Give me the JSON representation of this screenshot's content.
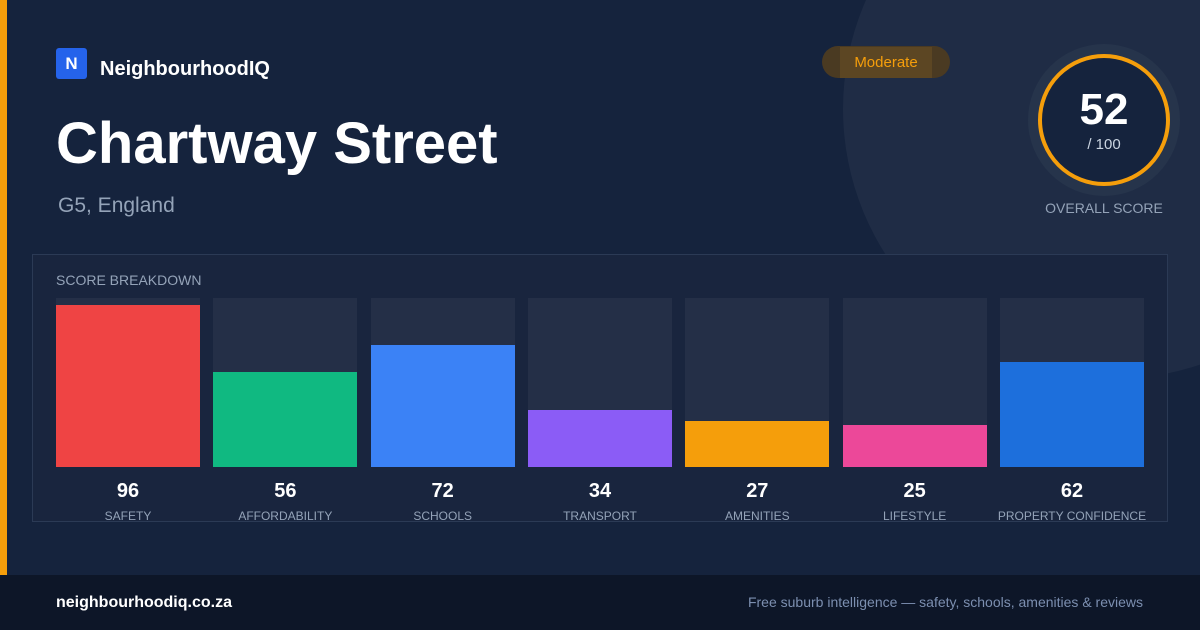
{
  "brand": {
    "logo_letter": "N",
    "name": "NeighbourhoodIQ"
  },
  "rating_badge": "Moderate",
  "title": "Chartway Street",
  "subtitle": "G5, England",
  "overall": {
    "score": "52",
    "max_label": "/ 100",
    "label": "OVERALL SCORE"
  },
  "breakdown_title": "SCORE BREAKDOWN",
  "colors": {
    "accent": "#f59e0b",
    "background": "#15233d",
    "brand_blue": "#2563eb"
  },
  "chart_data": {
    "type": "bar",
    "title": "SCORE BREAKDOWN",
    "ylim": [
      0,
      100
    ],
    "categories": [
      "SAFETY",
      "AFFORDABILITY",
      "SCHOOLS",
      "TRANSPORT",
      "AMENITIES",
      "LIFESTYLE",
      "PROPERTY CONFIDENCE"
    ],
    "values": [
      96,
      56,
      72,
      34,
      27,
      25,
      62
    ],
    "bar_colors": [
      "#ef4444",
      "#10b981",
      "#3b82f6",
      "#8b5cf6",
      "#f59e0b",
      "#ec4899",
      "#1d6fdc"
    ],
    "grid": false
  },
  "footer": {
    "url": "neighbourhoodiq.co.za",
    "tagline": "Free suburb intelligence — safety, schools, amenities & reviews"
  }
}
